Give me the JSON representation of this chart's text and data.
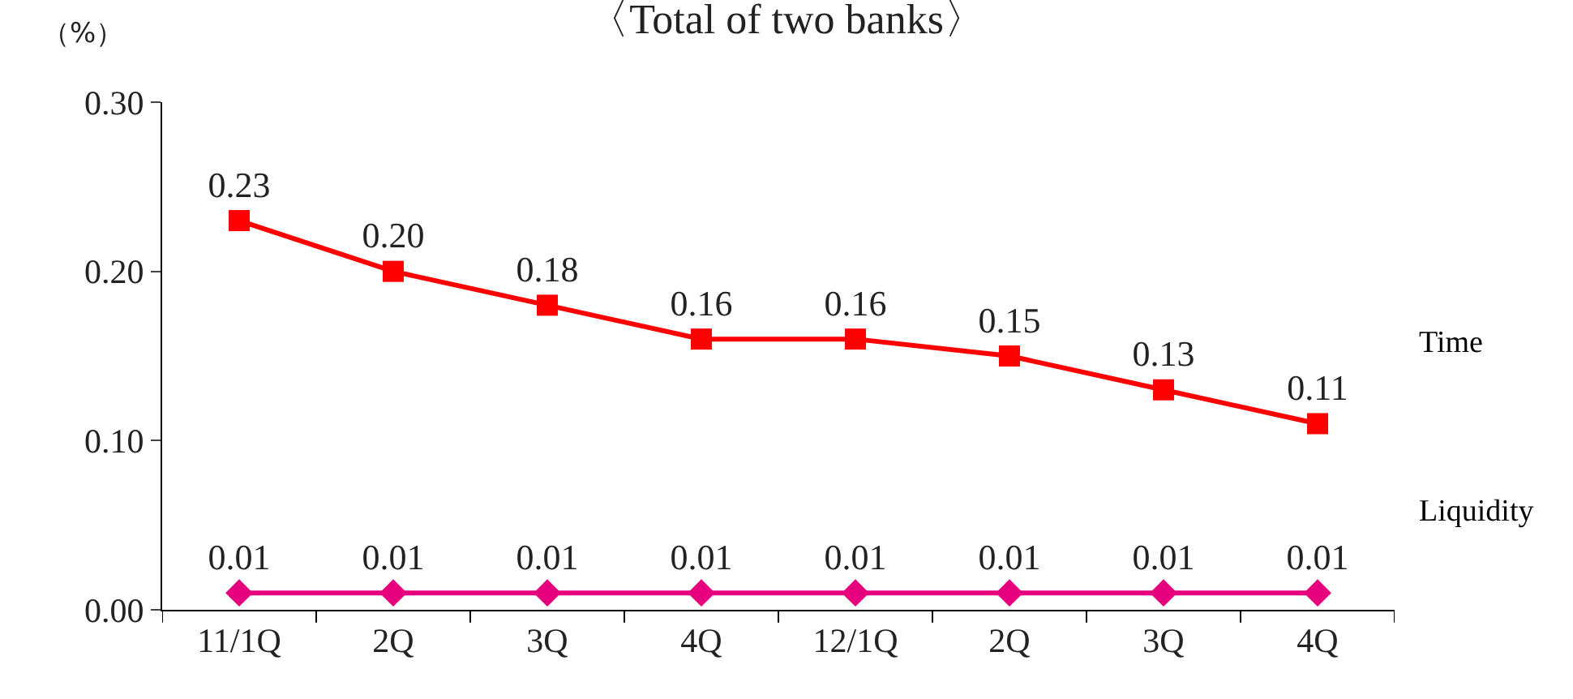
{
  "chart_data": {
    "type": "line",
    "title": "〈Total of two banks〉",
    "ylabel": "（%）",
    "categories": [
      "11/1Q",
      "2Q",
      "3Q",
      "4Q",
      "12/1Q",
      "2Q",
      "3Q",
      "4Q"
    ],
    "series": [
      {
        "name": "Time",
        "color": "#ff0000",
        "marker": "square",
        "values": [
          0.23,
          0.2,
          0.18,
          0.16,
          0.16,
          0.15,
          0.13,
          0.11
        ],
        "value_labels": [
          "0.23",
          "0.20",
          "0.18",
          "0.16",
          "0.16",
          "0.15",
          "0.13",
          "0.11"
        ]
      },
      {
        "name": "Liquidity",
        "color": "#e6007e",
        "marker": "diamond",
        "values": [
          0.01,
          0.01,
          0.01,
          0.01,
          0.01,
          0.01,
          0.01,
          0.01
        ],
        "value_labels": [
          "0.01",
          "0.01",
          "0.01",
          "0.01",
          "0.01",
          "0.01",
          "0.01",
          "0.01"
        ]
      }
    ],
    "ylim": [
      0,
      0.3
    ],
    "yticks": [
      {
        "value": 0,
        "label": "0.00"
      },
      {
        "value": 0.1,
        "label": "0.10"
      },
      {
        "value": 0.2,
        "label": "0.20"
      },
      {
        "value": 0.3,
        "label": "0.30"
      }
    ],
    "legend": false,
    "line_style": "solid"
  }
}
